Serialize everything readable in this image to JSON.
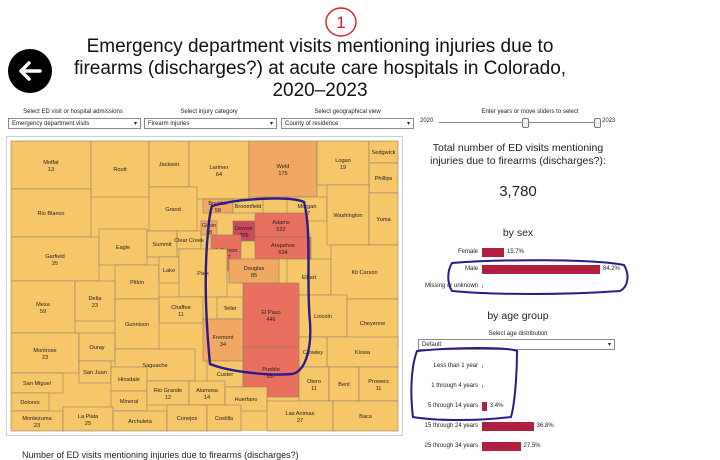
{
  "annotation_mark": "1",
  "header": {
    "title_line1": "Emergency department visits mentioning injuries due to",
    "title_line2": "firearms (discharges?) at acute care hospitals in Colorado,",
    "title_line3": "2020–2023"
  },
  "controls": {
    "visit_type": {
      "label": "Select ED visit or hospital admissions",
      "value": "Emergency department visits"
    },
    "injury": {
      "label": "Select injury category",
      "value": "Firearm injuries"
    },
    "geo": {
      "label": "Select geographical view",
      "value": "County of residence"
    },
    "years": {
      "label": "Enter years or move sliders to select",
      "start": "2020",
      "end": "2023"
    }
  },
  "summary": {
    "title_line1": "Total number of ED visits mentioning",
    "title_line2": "injuries due to firearms (discharges?):",
    "total": "3,780"
  },
  "by_sex": {
    "title": "by sex",
    "rows": [
      {
        "label": "Female",
        "value": "15.7%",
        "pct": 15.7
      },
      {
        "label": "Male",
        "value": "84.2%",
        "pct": 84.2
      },
      {
        "label": "Missing or unknown",
        "value": "",
        "pct": 0
      }
    ]
  },
  "by_age": {
    "title": "by age group",
    "select_label": "Select age distribution",
    "select_value": "Default",
    "rows": [
      {
        "label": "Less than 1 year",
        "value": "",
        "pct": 0
      },
      {
        "label": "1 through 4 years",
        "value": "",
        "pct": 0
      },
      {
        "label": "5 through 14 years",
        "value": "3.4%",
        "pct": 3.4
      },
      {
        "label": "15 through 24 years",
        "value": "36.8%",
        "pct": 36.8
      },
      {
        "label": "25 through 34 years",
        "value": "27.5%",
        "pct": 27.5
      }
    ]
  },
  "footer_text": "Number of ED visits mentioning injuries due to firearms (discharges?)",
  "map": {
    "colors": {
      "low": "#f5c768",
      "mid": "#f0a863",
      "high": "#e9705e",
      "darkest": "#c94a5b",
      "annotation": "#2a1a8c",
      "bar": "#b01f3f"
    },
    "counties": [
      {
        "name": "Moffat",
        "value": "13"
      },
      {
        "name": "Routt",
        "value": ""
      },
      {
        "name": "Jackson",
        "value": ""
      },
      {
        "name": "Larimer",
        "value": "64"
      },
      {
        "name": "Weld",
        "value": "175"
      },
      {
        "name": "Logan",
        "value": "19"
      },
      {
        "name": "Sedgwick",
        "value": ""
      },
      {
        "name": "Phillips",
        "value": ""
      },
      {
        "name": "Morgan",
        "value": "17"
      },
      {
        "name": "Rio Blanco",
        "value": ""
      },
      {
        "name": "Grand",
        "value": ""
      },
      {
        "name": "Boulder",
        "value": "58"
      },
      {
        "name": "Broomfield",
        "value": ""
      },
      {
        "name": "Washington",
        "value": ""
      },
      {
        "name": "Yuma",
        "value": ""
      },
      {
        "name": "Garfield",
        "value": "25"
      },
      {
        "name": "Eagle",
        "value": ""
      },
      {
        "name": "Summit",
        "value": ""
      },
      {
        "name": "Clear Creek",
        "value": ""
      },
      {
        "name": "Gilpin",
        "value": "18"
      },
      {
        "name": "Denver",
        "value": "809"
      },
      {
        "name": "Adams",
        "value": "522"
      },
      {
        "name": "Arapahoe",
        "value": "534"
      },
      {
        "name": "Jefferson",
        "value": "227"
      },
      {
        "name": "Douglas",
        "value": "85"
      },
      {
        "name": "Elbert",
        "value": ""
      },
      {
        "name": "Kit Carson",
        "value": ""
      },
      {
        "name": "Pitkin",
        "value": ""
      },
      {
        "name": "Lake",
        "value": ""
      },
      {
        "name": "Park",
        "value": ""
      },
      {
        "name": "Mesa",
        "value": "59"
      },
      {
        "name": "Delta",
        "value": "23"
      },
      {
        "name": "Teller",
        "value": ""
      },
      {
        "name": "Lincoln",
        "value": ""
      },
      {
        "name": "Cheyenne",
        "value": ""
      },
      {
        "name": "Chaffee",
        "value": "11"
      },
      {
        "name": "Gunnison",
        "value": ""
      },
      {
        "name": "El Paso",
        "value": "446"
      },
      {
        "name": "Montrose",
        "value": "23"
      },
      {
        "name": "Fremont",
        "value": "34"
      },
      {
        "name": "Kiowa",
        "value": ""
      },
      {
        "name": "Ouray",
        "value": ""
      },
      {
        "name": "Crowley",
        "value": ""
      },
      {
        "name": "San Miguel",
        "value": ""
      },
      {
        "name": "Saguache",
        "value": ""
      },
      {
        "name": "Custer",
        "value": ""
      },
      {
        "name": "Pueblo",
        "value": "357"
      },
      {
        "name": "Otero",
        "value": "11"
      },
      {
        "name": "Bent",
        "value": ""
      },
      {
        "name": "Prowers",
        "value": "11"
      },
      {
        "name": "San Juan",
        "value": ""
      },
      {
        "name": "Dolores",
        "value": ""
      },
      {
        "name": "Hinsdale",
        "value": ""
      },
      {
        "name": "Mineral",
        "value": ""
      },
      {
        "name": "Rio Grande",
        "value": "12"
      },
      {
        "name": "Alamosa",
        "value": "14"
      },
      {
        "name": "Huerfano",
        "value": ""
      },
      {
        "name": "Montezuma",
        "value": "23"
      },
      {
        "name": "La Plata",
        "value": "25"
      },
      {
        "name": "Archuleta",
        "value": ""
      },
      {
        "name": "Conejos",
        "value": ""
      },
      {
        "name": "Costilla",
        "value": ""
      },
      {
        "name": "Las Animas",
        "value": "27"
      },
      {
        "name": "Baca",
        "value": ""
      }
    ]
  }
}
